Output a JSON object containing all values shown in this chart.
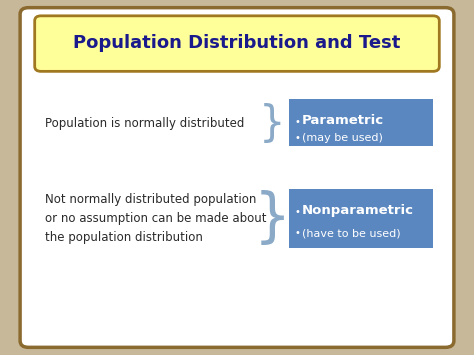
{
  "title": "Population Distribution and Test",
  "title_color": "#1a1a8c",
  "title_bg_color": "#ffff99",
  "title_border_color": "#a07820",
  "outer_bg_color": "#c8b89a",
  "card_bg_color": "#ffffff",
  "card_border_color": "#8b6a30",
  "box_color": "#5b87c0",
  "box_text_color": "#ffffff",
  "left_text_color": "#2a2a2a",
  "brace_color": "#8aaac8",
  "row1_left": "Population is normally distributed",
  "row2_left": "Not normally distributed population\nor no assumption can be made about\nthe population distribution",
  "row1_box_title": "Parametric",
  "row1_box_sub": "(may be used)",
  "row2_box_title": "Nonparametric",
  "row2_box_sub": "(have to be used)"
}
